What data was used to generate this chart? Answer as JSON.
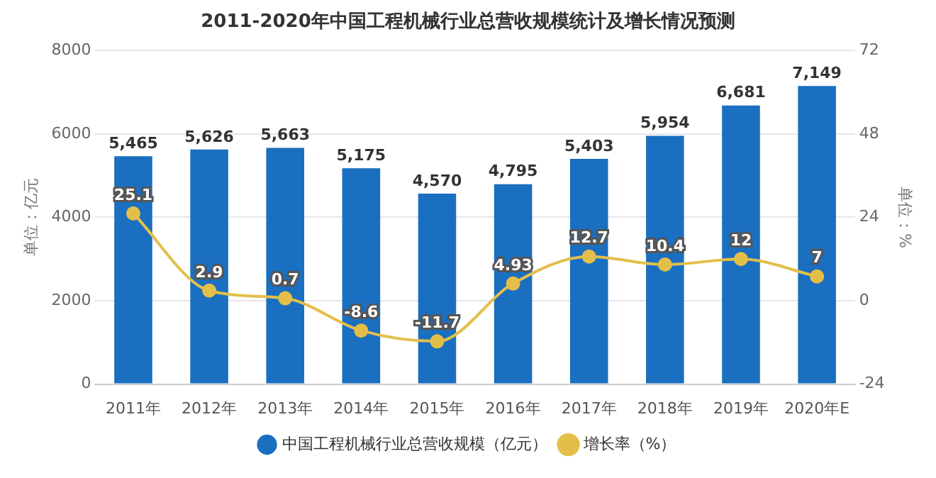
{
  "chart_data": {
    "type": "bar",
    "title": "2011-2020年中国工程机械行业总营收规模统计及增长情况预测",
    "categories": [
      "2011年",
      "2012年",
      "2013年",
      "2014年",
      "2015年",
      "2016年",
      "2017年",
      "2018年",
      "2019年",
      "2020年E"
    ],
    "series": [
      {
        "name": "中国工程机械行业总营收规模（亿元）",
        "color": "#1a6fc0",
        "values": [
          5465,
          5626,
          5663,
          5175,
          4570,
          4795,
          5403,
          5954,
          6681,
          7149
        ],
        "value_labels": [
          "5,465",
          "5,626",
          "5,663",
          "5,175",
          "4,570",
          "4,795",
          "5,403",
          "5,954",
          "6,681",
          "7,149"
        ]
      },
      {
        "name": "增长率（%）",
        "type": "line",
        "axis": "y2",
        "color": "#e3bf4a",
        "values": [
          25.1,
          2.9,
          0.7,
          -8.6,
          -11.7,
          4.93,
          12.7,
          10.4,
          12,
          7
        ],
        "value_labels": [
          "25.1",
          "2.9",
          "0.7",
          "-8.6",
          "-11.7",
          "4.93",
          "12.7",
          "10.4",
          "12",
          "7"
        ]
      }
    ],
    "ylabel": "单位：亿元",
    "y2label": "单位：%",
    "ylim": [
      0,
      8000
    ],
    "yticks": [
      0,
      2000,
      4000,
      6000,
      8000
    ],
    "y2lim": [
      -24,
      72
    ],
    "y2ticks": [
      -24,
      0,
      24,
      48,
      72
    ],
    "grid": "y",
    "legend": "bottom",
    "marker": "circle"
  }
}
